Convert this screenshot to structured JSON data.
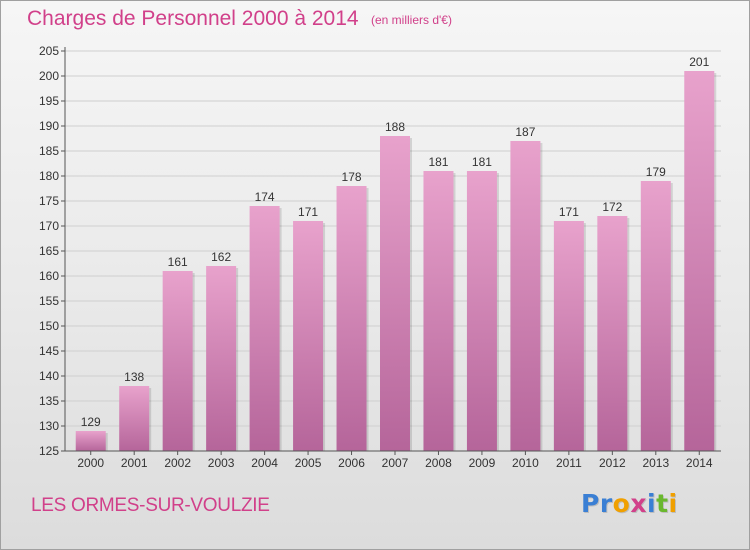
{
  "header": {
    "title": "Charges de Personnel 2000 à 2014",
    "subtitle": "(en milliers d'€)"
  },
  "footer": {
    "commune": "LES ORMES-SUR-VOULZIE",
    "logo_text": "Proxiti",
    "logo_colors": [
      "#3a7fd4",
      "#3a7fd4",
      "#f0a000",
      "#d1408a",
      "#3a7fd4",
      "#6ab82e",
      "#f0a000"
    ]
  },
  "colors": {
    "accent": "#d1408a",
    "bar_top": "#e8a2cc",
    "bar_bottom": "#b5659a"
  },
  "chart_data": {
    "type": "bar",
    "title": "Charges de Personnel 2000 à 2014",
    "subtitle": "(en milliers d'€)",
    "categories": [
      "2000",
      "2001",
      "2002",
      "2003",
      "2004",
      "2005",
      "2006",
      "2007",
      "2008",
      "2009",
      "2010",
      "2011",
      "2012",
      "2013",
      "2014"
    ],
    "values": [
      129,
      138,
      161,
      162,
      174,
      171,
      178,
      188,
      181,
      181,
      187,
      171,
      172,
      179,
      201
    ],
    "ylim": [
      125,
      205
    ],
    "yticks": [
      125,
      130,
      135,
      140,
      145,
      150,
      155,
      160,
      165,
      170,
      175,
      180,
      185,
      190,
      195,
      200,
      205
    ],
    "grid": true,
    "data_labels": true
  }
}
